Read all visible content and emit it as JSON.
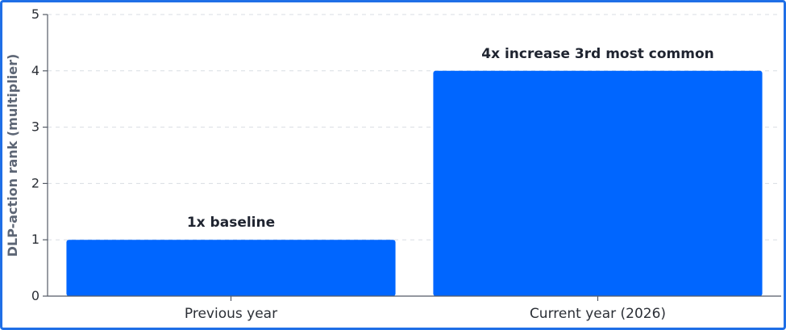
{
  "chart_data": {
    "type": "bar",
    "categories": [
      "Previous year",
      "Current year (2026)"
    ],
    "values": [
      1,
      4
    ],
    "data_labels": [
      "1x baseline",
      "4x increase 3rd most common"
    ],
    "title": "",
    "xlabel": "",
    "ylabel": "DLP-action rank (multiplier)",
    "ylim": [
      0,
      5
    ],
    "yticks": [
      0,
      1,
      2,
      3,
      4,
      5
    ],
    "grid": true,
    "legend": "none",
    "bar_color": "#0066ff",
    "grid_color": "#d9dde3",
    "axis_color": "#555b66",
    "frame_color": "#1f6fe6"
  }
}
